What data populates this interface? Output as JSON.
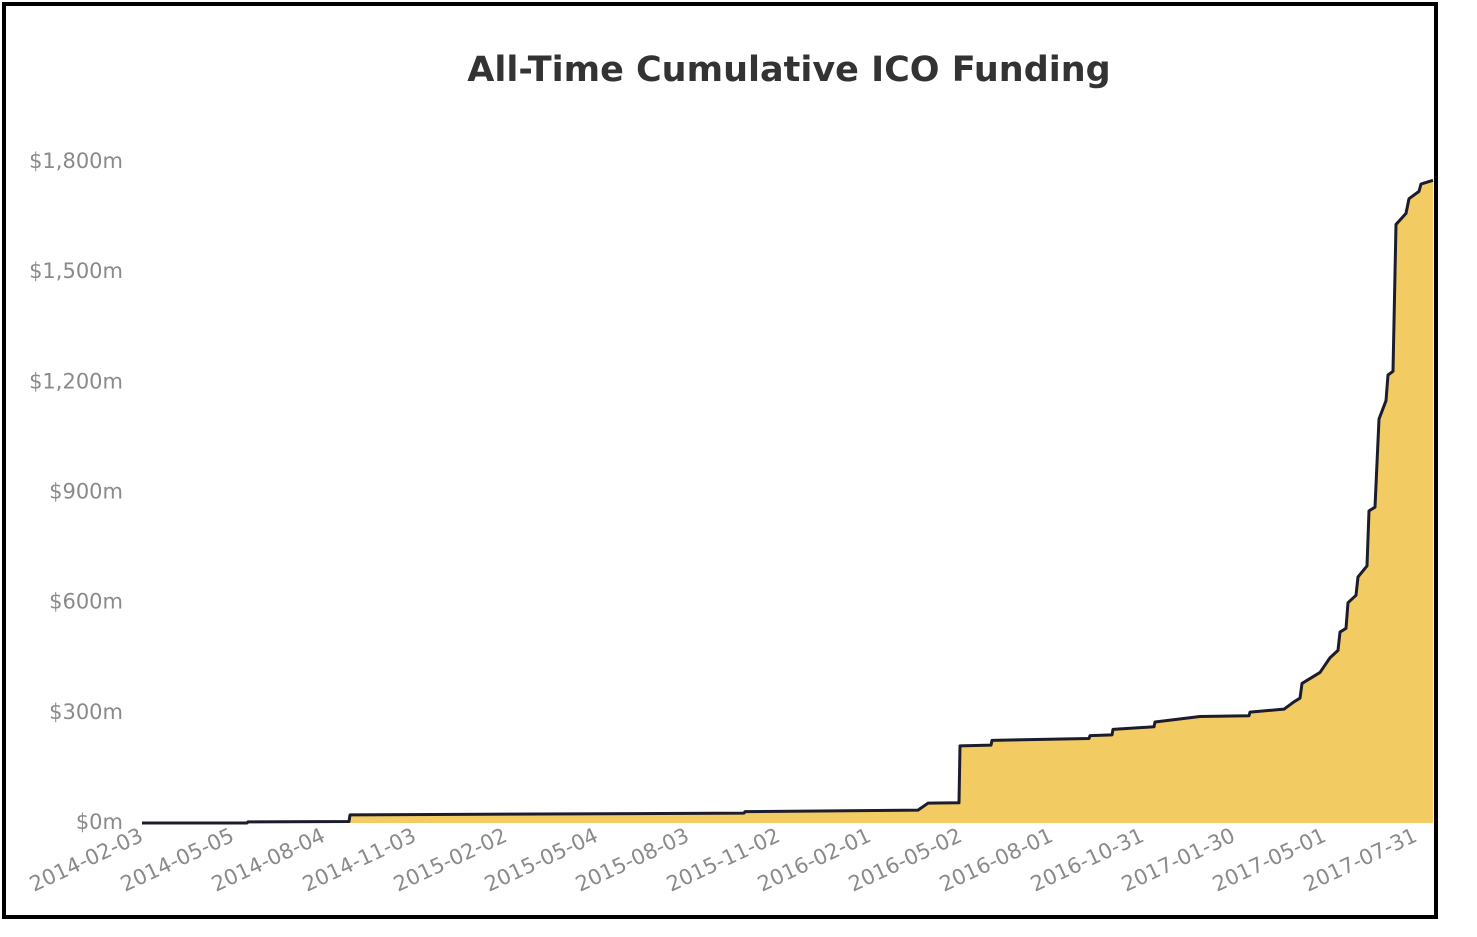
{
  "chart_data": {
    "type": "area",
    "title": "All-Time Cumulative ICO Funding",
    "x": [
      "2014-02-03",
      "2014-05-19",
      "2014-05-20",
      "2014-08-29",
      "2014-08-30",
      "2015-09-28",
      "2015-09-29",
      "2016-03-20",
      "2016-03-30",
      "2016-04-30",
      "2016-05-01",
      "2016-06-01",
      "2016-06-02",
      "2016-09-07",
      "2016-09-08",
      "2016-09-30",
      "2016-10-01",
      "2016-11-11",
      "2016-11-12",
      "2016-12-27",
      "2017-02-14",
      "2017-02-15",
      "2017-03-21",
      "2017-03-31",
      "2017-04-06",
      "2017-04-08",
      "2017-04-26",
      "2017-05-06",
      "2017-05-14",
      "2017-05-16",
      "2017-05-22",
      "2017-05-24",
      "2017-06-01",
      "2017-06-03",
      "2017-06-12",
      "2017-06-14",
      "2017-06-20",
      "2017-06-24",
      "2017-07-01",
      "2017-07-03",
      "2017-07-08",
      "2017-07-11",
      "2017-07-21",
      "2017-07-24",
      "2017-08-03",
      "2017-08-05",
      "2017-08-17"
    ],
    "values": [
      0,
      0,
      3,
      4,
      22,
      27,
      31,
      35,
      54,
      55,
      210,
      212,
      225,
      230,
      238,
      240,
      255,
      262,
      275,
      290,
      292,
      302,
      310,
      330,
      340,
      380,
      410,
      450,
      470,
      520,
      530,
      600,
      620,
      670,
      700,
      850,
      860,
      1100,
      1150,
      1220,
      1230,
      1630,
      1660,
      1700,
      1720,
      1740,
      1750
    ],
    "color": "#f2cc63",
    "line_color": "#1c1c2c",
    "xlim": [
      "2014-02-03",
      "2017-08-17"
    ],
    "xticks": [
      "2014-02-03",
      "2014-05-05",
      "2014-08-04",
      "2014-11-03",
      "2015-02-02",
      "2015-05-04",
      "2015-08-03",
      "2015-11-02",
      "2016-02-01",
      "2016-05-02",
      "2016-08-01",
      "2016-10-31",
      "2017-01-30",
      "2017-05-01",
      "2017-07-31"
    ],
    "ylim": [
      0,
      1800
    ],
    "yticks": [
      {
        "value": 0,
        "label": "$0m"
      },
      {
        "value": 300,
        "label": "$300m"
      },
      {
        "value": 600,
        "label": "$600m"
      },
      {
        "value": 900,
        "label": "$900m"
      },
      {
        "value": 1200,
        "label": "$1,200m"
      },
      {
        "value": 1500,
        "label": "$1,500m"
      },
      {
        "value": 1800,
        "label": "$1,800m"
      }
    ]
  }
}
